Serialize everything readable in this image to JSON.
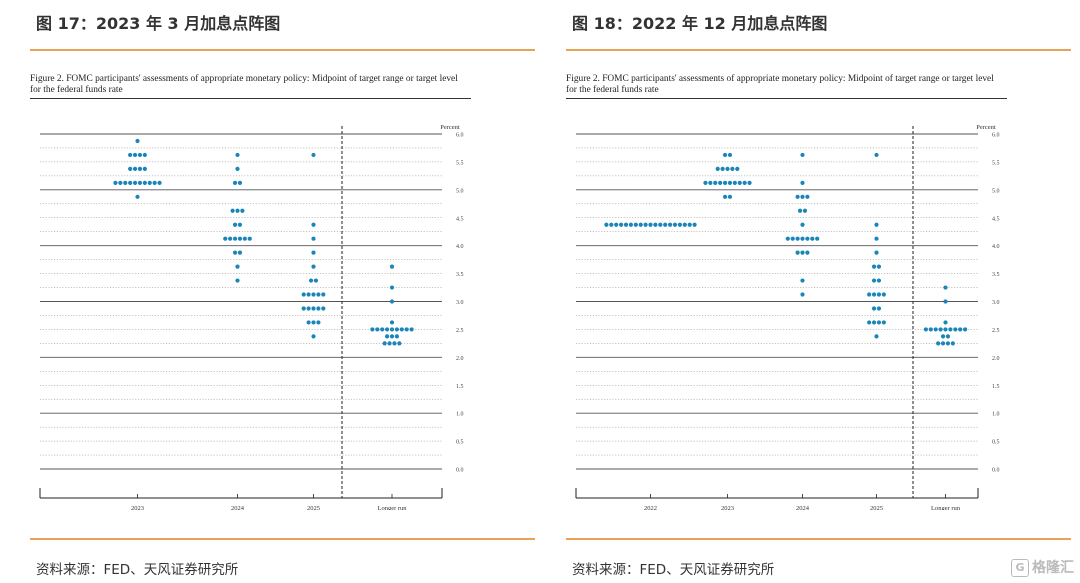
{
  "colors": {
    "accent_rule": "#e8a25a",
    "dot": "#1a85b8",
    "text": "#333333"
  },
  "watermark": {
    "icon": "ge-logo-icon",
    "text": "格隆汇"
  },
  "panels": [
    {
      "heading": "图 17：2023 年 3 月加息点阵图",
      "figure_caption": "Figure 2.  FOMC participants' assessments of appropriate monetary policy: Midpoint of target range or target level for the federal funds rate",
      "source": "资料来源：FED、天风证券研究所"
    },
    {
      "heading": "图 18：2022 年 12 月加息点阵图",
      "figure_caption": "Figure 2.  FOMC participants' assessments of appropriate monetary policy: Midpoint of target range or target level for the federal funds rate",
      "source": "资料来源：FED、天风证券研究所"
    }
  ],
  "chart_data": [
    {
      "type": "scatter",
      "title": "Figure 2.  FOMC participants' assessments of appropriate monetary policy: Midpoint of target range or target level for the federal funds rate",
      "ylabel": "Percent",
      "ylim": [
        0,
        6
      ],
      "ytick_step": 0.5,
      "categories": [
        "2023",
        "2024",
        "2025",
        "Longer run"
      ],
      "separator_before": "Longer run",
      "grid": true,
      "series": [
        {
          "category": "2023",
          "points": [
            {
              "y": 5.875,
              "count": 1
            },
            {
              "y": 5.625,
              "count": 4
            },
            {
              "y": 5.375,
              "count": 4
            },
            {
              "y": 5.125,
              "count": 10
            },
            {
              "y": 4.875,
              "count": 1
            }
          ]
        },
        {
          "category": "2024",
          "points": [
            {
              "y": 5.625,
              "count": 1
            },
            {
              "y": 5.375,
              "count": 1
            },
            {
              "y": 5.125,
              "count": 2
            },
            {
              "y": 4.625,
              "count": 3
            },
            {
              "y": 4.375,
              "count": 2
            },
            {
              "y": 4.125,
              "count": 6
            },
            {
              "y": 3.875,
              "count": 2
            },
            {
              "y": 3.625,
              "count": 1
            },
            {
              "y": 3.375,
              "count": 1
            }
          ]
        },
        {
          "category": "2025",
          "points": [
            {
              "y": 5.625,
              "count": 1
            },
            {
              "y": 4.375,
              "count": 1
            },
            {
              "y": 4.125,
              "count": 1
            },
            {
              "y": 3.875,
              "count": 1
            },
            {
              "y": 3.625,
              "count": 1
            },
            {
              "y": 3.375,
              "count": 2
            },
            {
              "y": 3.125,
              "count": 5
            },
            {
              "y": 2.875,
              "count": 5
            },
            {
              "y": 2.625,
              "count": 3
            },
            {
              "y": 2.375,
              "count": 1
            }
          ]
        },
        {
          "category": "Longer run",
          "points": [
            {
              "y": 3.625,
              "count": 1
            },
            {
              "y": 3.25,
              "count": 1
            },
            {
              "y": 3.0,
              "count": 1
            },
            {
              "y": 2.625,
              "count": 1
            },
            {
              "y": 2.5,
              "count": 9
            },
            {
              "y": 2.375,
              "count": 3
            },
            {
              "y": 2.25,
              "count": 4
            }
          ]
        }
      ]
    },
    {
      "type": "scatter",
      "title": "Figure 2.  FOMC participants' assessments of appropriate monetary policy: Midpoint of target range or target level for the federal funds rate",
      "ylabel": "Percent",
      "ylim": [
        0,
        6
      ],
      "ytick_step": 0.5,
      "categories": [
        "2022",
        "2023",
        "2024",
        "2025",
        "Longer run"
      ],
      "separator_before": "Longer run",
      "grid": true,
      "series": [
        {
          "category": "2022",
          "points": [
            {
              "y": 4.375,
              "count": 19
            }
          ]
        },
        {
          "category": "2023",
          "points": [
            {
              "y": 5.625,
              "count": 2
            },
            {
              "y": 5.375,
              "count": 5
            },
            {
              "y": 5.125,
              "count": 10
            },
            {
              "y": 4.875,
              "count": 2
            }
          ]
        },
        {
          "category": "2024",
          "points": [
            {
              "y": 5.625,
              "count": 1
            },
            {
              "y": 5.125,
              "count": 1
            },
            {
              "y": 4.875,
              "count": 3
            },
            {
              "y": 4.625,
              "count": 2
            },
            {
              "y": 4.375,
              "count": 1
            },
            {
              "y": 4.125,
              "count": 7
            },
            {
              "y": 3.875,
              "count": 3
            },
            {
              "y": 3.375,
              "count": 1
            },
            {
              "y": 3.125,
              "count": 1
            }
          ]
        },
        {
          "category": "2025",
          "points": [
            {
              "y": 5.625,
              "count": 1
            },
            {
              "y": 4.375,
              "count": 1
            },
            {
              "y": 4.125,
              "count": 1
            },
            {
              "y": 3.875,
              "count": 1
            },
            {
              "y": 3.625,
              "count": 2
            },
            {
              "y": 3.375,
              "count": 2
            },
            {
              "y": 3.125,
              "count": 4
            },
            {
              "y": 2.875,
              "count": 2
            },
            {
              "y": 2.625,
              "count": 4
            },
            {
              "y": 2.375,
              "count": 1
            }
          ]
        },
        {
          "category": "Longer run",
          "points": [
            {
              "y": 3.25,
              "count": 1
            },
            {
              "y": 3.0,
              "count": 1
            },
            {
              "y": 2.625,
              "count": 1
            },
            {
              "y": 2.5,
              "count": 9
            },
            {
              "y": 2.375,
              "count": 2
            },
            {
              "y": 2.25,
              "count": 4
            }
          ]
        }
      ]
    }
  ]
}
